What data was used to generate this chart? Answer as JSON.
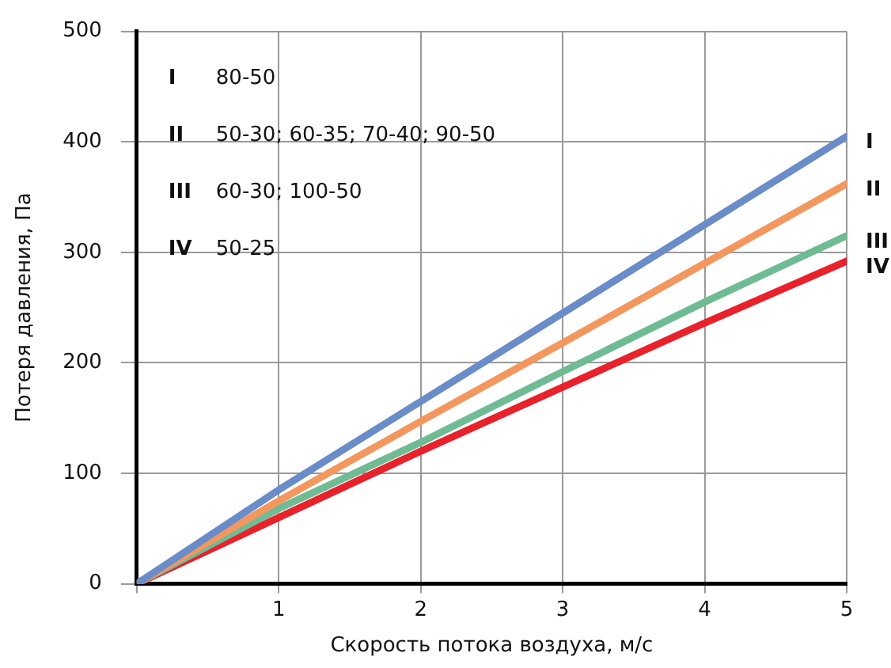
{
  "chart_data": {
    "type": "line",
    "xlabel": "Скорость потока воздуха, м/с",
    "ylabel": "Потеря давления, Па",
    "x": [
      0,
      1,
      2,
      3,
      4,
      5
    ],
    "series": [
      {
        "name": "I",
        "color": "#6a8cc8",
        "values": [
          0,
          85,
          165,
          245,
          325,
          405
        ]
      },
      {
        "name": "II",
        "color": "#f4975e",
        "values": [
          0,
          75,
          147,
          218,
          290,
          362
        ]
      },
      {
        "name": "III",
        "color": "#6fbb94",
        "values": [
          0,
          68,
          128,
          192,
          255,
          315
        ]
      },
      {
        "name": "IV",
        "color": "#e8212b",
        "values": [
          0,
          60,
          120,
          178,
          236,
          292
        ]
      }
    ],
    "xlim": [
      0,
      5
    ],
    "xticks": [
      {
        "value": 0,
        "label": null
      },
      1,
      2,
      3,
      4,
      5
    ],
    "ylim": [
      0,
      500
    ],
    "yticks": [
      0,
      100,
      200,
      300,
      400,
      500
    ],
    "grid": true,
    "legend": false,
    "marker": "none",
    "line_style": "solid",
    "annotations": [
      "I 80-50",
      "II 50-30; 60-35; 70-40; 90-50",
      "III 60-30; 100-50",
      "IV 50-25"
    ]
  }
}
